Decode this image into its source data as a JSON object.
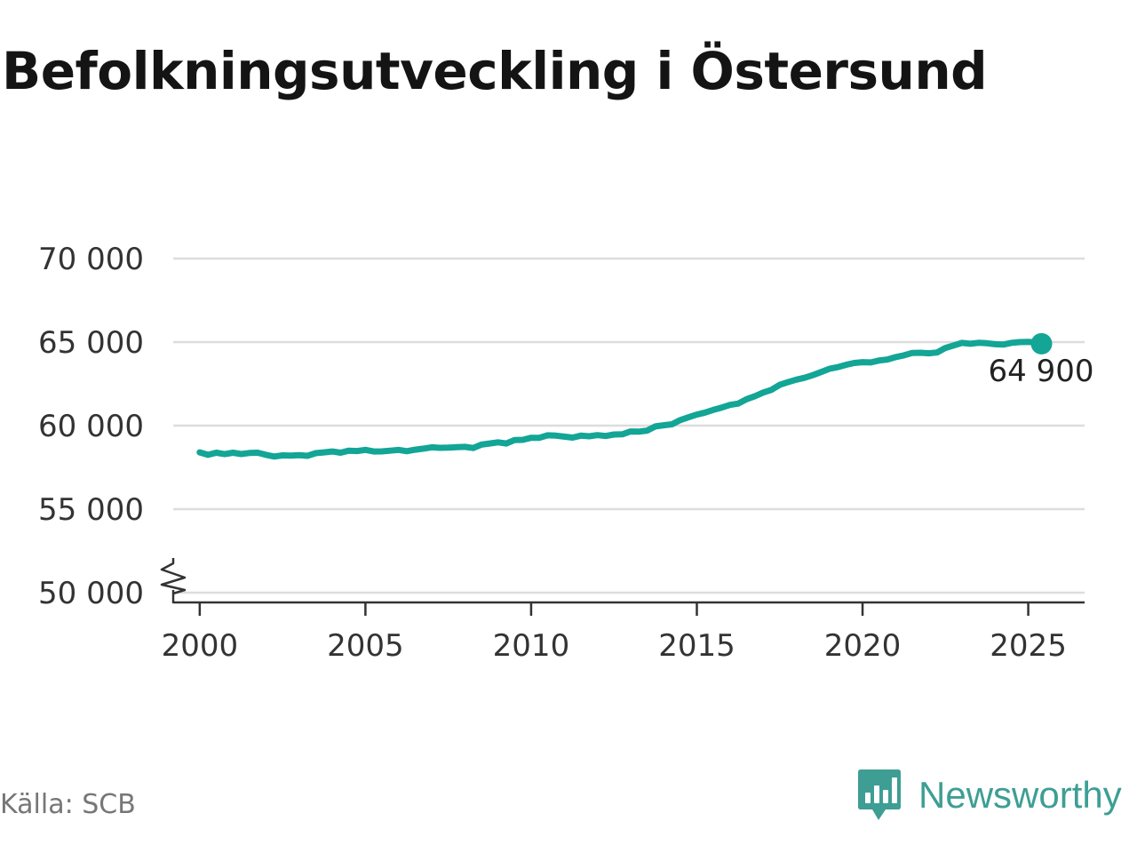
{
  "title": "Befolkningsutveckling i Östersund",
  "source": "Källa: SCB",
  "brand": {
    "name": "Newsworthy",
    "icon": "newsworthy-chart-bubble-icon",
    "color": "#3e9e94"
  },
  "colors": {
    "line": "#13a596",
    "grid": "#dddddd",
    "axis": "#333333"
  },
  "chart_data": {
    "type": "line",
    "title": "Befolkningsutveckling i Östersund",
    "xlabel": "",
    "ylabel": "",
    "xlim": [
      1999.2,
      2026.7
    ],
    "ylim": [
      50000,
      70000
    ],
    "y_axis_break": true,
    "grid": "horizontal",
    "xticks": [
      2000,
      2005,
      2010,
      2015,
      2020,
      2025
    ],
    "yticks": [
      {
        "value": 50000,
        "label": "50 000"
      },
      {
        "value": 55000,
        "label": "55 000"
      },
      {
        "value": 60000,
        "label": "60 000"
      },
      {
        "value": 65000,
        "label": "65 000"
      },
      {
        "value": 70000,
        "label": "70 000"
      }
    ],
    "end_label": "64 900",
    "x": [
      2000.0,
      2000.25,
      2000.5,
      2000.75,
      2001.0,
      2001.25,
      2001.5,
      2001.75,
      2002.0,
      2002.25,
      2002.5,
      2002.75,
      2003.0,
      2003.25,
      2003.5,
      2003.75,
      2004.0,
      2004.25,
      2004.5,
      2004.75,
      2005.0,
      2005.25,
      2005.5,
      2005.75,
      2006.0,
      2006.25,
      2006.5,
      2006.75,
      2007.0,
      2007.25,
      2007.5,
      2007.75,
      2008.0,
      2008.25,
      2008.5,
      2008.75,
      2009.0,
      2009.25,
      2009.5,
      2009.75,
      2010.0,
      2010.25,
      2010.5,
      2010.75,
      2011.0,
      2011.25,
      2011.5,
      2011.75,
      2012.0,
      2012.25,
      2012.5,
      2012.75,
      2013.0,
      2013.25,
      2013.5,
      2013.75,
      2014.0,
      2014.25,
      2014.5,
      2014.75,
      2015.0,
      2015.25,
      2015.5,
      2015.75,
      2016.0,
      2016.25,
      2016.5,
      2016.75,
      2017.0,
      2017.25,
      2017.5,
      2017.75,
      2018.0,
      2018.25,
      2018.5,
      2018.75,
      2019.0,
      2019.25,
      2019.5,
      2019.75,
      2020.0,
      2020.25,
      2020.5,
      2020.75,
      2021.0,
      2021.25,
      2021.5,
      2021.75,
      2022.0,
      2022.25,
      2022.5,
      2022.75,
      2023.0,
      2023.25,
      2023.5,
      2023.75,
      2024.0,
      2024.25,
      2024.5,
      2024.75,
      2025.0,
      2025.25,
      2025.4
    ],
    "series": [
      {
        "values": [
          58400,
          58250,
          58380,
          58290,
          58380,
          58300,
          58360,
          58380,
          58250,
          58150,
          58220,
          58200,
          58230,
          58190,
          58350,
          58400,
          58450,
          58380,
          58500,
          58480,
          58550,
          58450,
          58460,
          58500,
          58550,
          58470,
          58560,
          58620,
          58700,
          58670,
          58680,
          58710,
          58730,
          58660,
          58860,
          58930,
          59000,
          58930,
          59140,
          59150,
          59270,
          59270,
          59420,
          59400,
          59340,
          59280,
          59400,
          59360,
          59430,
          59380,
          59470,
          59480,
          59650,
          59640,
          59700,
          59950,
          60020,
          60080,
          60330,
          60500,
          60660,
          60780,
          60940,
          61080,
          61240,
          61320,
          61580,
          61760,
          61980,
          62140,
          62440,
          62600,
          62750,
          62860,
          63020,
          63210,
          63400,
          63500,
          63640,
          63750,
          63800,
          63780,
          63900,
          63960,
          64100,
          64210,
          64350,
          64360,
          64330,
          64380,
          64650,
          64800,
          64950,
          64900,
          64960,
          64930,
          64870,
          64850,
          64960,
          65000,
          65010,
          64980,
          64900
        ]
      }
    ]
  }
}
